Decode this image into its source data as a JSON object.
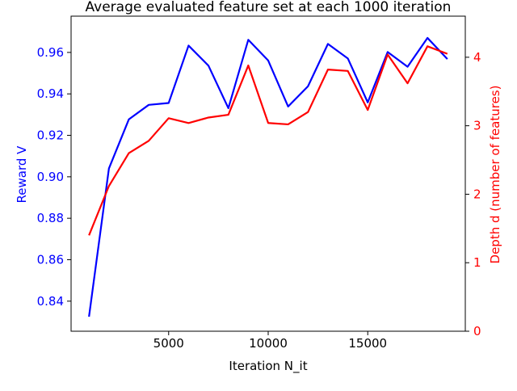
{
  "chart_data": {
    "type": "line",
    "title": "Average evaluated feature set at each 1000 iteration",
    "xlabel": "Iteration N_it",
    "ylabel_left": "Reward V",
    "ylabel_right": "Depth d (number of features)",
    "x": [
      1000,
      2000,
      3000,
      4000,
      5000,
      6000,
      7000,
      8000,
      9000,
      10000,
      11000,
      12000,
      13000,
      14000,
      15000,
      16000,
      17000,
      18000,
      19000
    ],
    "xlim": [
      100,
      19900
    ],
    "ylim_left": [
      0.8255,
      0.9775
    ],
    "ylim_right": [
      0,
      4.6
    ],
    "x_ticks": [
      5000,
      10000,
      15000
    ],
    "x_tick_labels": [
      "5000",
      "10000",
      "15000"
    ],
    "y_left_ticks": [
      0.84,
      0.86,
      0.88,
      0.9,
      0.92,
      0.94,
      0.96
    ],
    "y_left_tick_labels": [
      "0.84",
      "0.86",
      "0.88",
      "0.90",
      "0.92",
      "0.94",
      "0.96"
    ],
    "y_right_ticks": [
      0,
      1,
      2,
      3,
      4
    ],
    "y_right_tick_labels": [
      "0",
      "1",
      "2",
      "3",
      "4"
    ],
    "grid": false,
    "series": [
      {
        "axis": "left",
        "color": "#0000ff",
        "values": [
          0.8325,
          0.904,
          0.9277,
          0.9347,
          0.9356,
          0.9633,
          0.9536,
          0.9331,
          0.9661,
          0.9561,
          0.9339,
          0.9437,
          0.9641,
          0.9571,
          0.9359,
          0.9602,
          0.9531,
          0.967,
          0.9568
        ]
      },
      {
        "axis": "right",
        "color": "#ff0000",
        "values": [
          1.4,
          2.12,
          2.6,
          2.78,
          3.11,
          3.04,
          3.12,
          3.16,
          3.88,
          3.04,
          3.02,
          3.2,
          3.82,
          3.8,
          3.23,
          4.04,
          3.62,
          4.16,
          4.05
        ]
      }
    ]
  }
}
